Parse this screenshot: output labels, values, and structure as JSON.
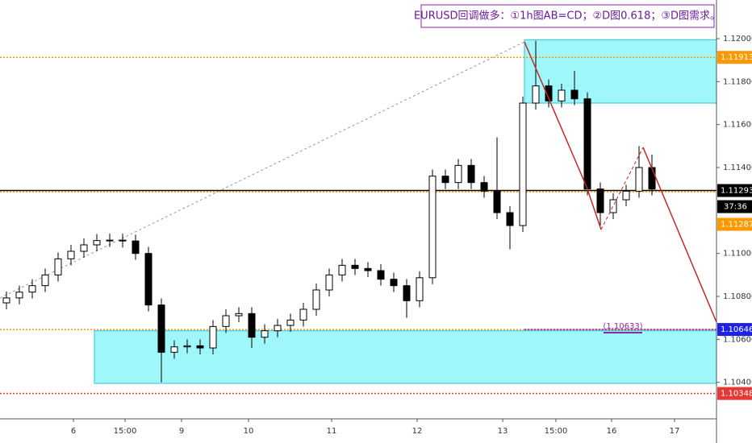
{
  "chart_data": {
    "type": "candlestick",
    "annotation": "EURUSD回调做多：①1h图AB=CD；②D图0.618；③D图需求。",
    "x": [
      8,
      24,
      40,
      56,
      72,
      88,
      104,
      120,
      136,
      152,
      168,
      184,
      200,
      216,
      232,
      248,
      264,
      280,
      296,
      312,
      328,
      344,
      360,
      376,
      392,
      408,
      424,
      440,
      456,
      472,
      488,
      504,
      520,
      536,
      552,
      568,
      584,
      600,
      616,
      632,
      648,
      664,
      680,
      696,
      712,
      728,
      744,
      760,
      776,
      792,
      808
    ],
    "open": [
      1.1077,
      1.10793,
      1.1082,
      1.1085,
      1.109,
      1.10975,
      1.1101,
      1.1104,
      1.1106,
      1.11062,
      1.11058,
      1.11,
      1.1076,
      1.1054,
      1.10565,
      1.1057,
      1.1056,
      1.1066,
      1.1071,
      1.1072,
      1.1061,
      1.1064,
      1.10665,
      1.1069,
      1.1074,
      1.1083,
      1.109,
      1.10945,
      1.1093,
      1.1092,
      1.1088,
      1.1085,
      1.1078,
      1.10887,
      1.1136,
      1.1133,
      1.1141,
      1.1133,
      1.1129,
      1.1119,
      1.1113,
      1.117,
      1.1178,
      1.1171,
      1.1176,
      1.1172,
      1.113,
      1.1119,
      1.1125,
      1.1129,
      1.114
    ],
    "high": [
      1.10823,
      1.1085,
      1.1088,
      1.1093,
      1.11005,
      1.1104,
      1.1107,
      1.1109,
      1.11092,
      1.11092,
      1.11088,
      1.1103,
      1.1079,
      1.10595,
      1.106,
      1.106,
      1.1069,
      1.1074,
      1.1075,
      1.1075,
      1.1067,
      1.10695,
      1.1072,
      1.1077,
      1.1086,
      1.1093,
      1.10975,
      1.10975,
      1.1096,
      1.1095,
      1.1091,
      1.1088,
      1.10917,
      1.1139,
      1.1139,
      1.1144,
      1.1144,
      1.1136,
      1.1154,
      1.1122,
      1.1173,
      1.1199,
      1.1181,
      1.1179,
      1.1185,
      1.1175,
      1.1133,
      1.1128,
      1.1132,
      1.115,
      1.1146
    ],
    "low": [
      1.1074,
      1.10763,
      1.1079,
      1.1082,
      1.1087,
      1.10945,
      1.1098,
      1.1101,
      1.1103,
      1.11028,
      1.1097,
      1.1073,
      1.104,
      1.1051,
      1.10535,
      1.1053,
      1.1053,
      1.1063,
      1.1068,
      1.1056,
      1.1058,
      1.1061,
      1.10635,
      1.1066,
      1.1071,
      1.108,
      1.1087,
      1.109,
      1.1089,
      1.1085,
      1.1082,
      1.107,
      1.1075,
      1.10857,
      1.113,
      1.113,
      1.113,
      1.1126,
      1.1116,
      1.1102,
      1.111,
      1.1167,
      1.1168,
      1.1168,
      1.1169,
      1.1127,
      1.1113,
      1.1116,
      1.1122,
      1.1126,
      1.1127
    ],
    "close": [
      1.10793,
      1.1082,
      1.1085,
      1.109,
      1.10975,
      1.1101,
      1.1104,
      1.1106,
      1.11062,
      1.11058,
      1.11,
      1.1076,
      1.1054,
      1.10565,
      1.1057,
      1.1056,
      1.1066,
      1.1071,
      1.1072,
      1.1061,
      1.1064,
      1.10665,
      1.1069,
      1.1074,
      1.1083,
      1.109,
      1.10945,
      1.1093,
      1.1092,
      1.1088,
      1.1085,
      1.1078,
      1.10887,
      1.1136,
      1.1133,
      1.1141,
      1.1133,
      1.1129,
      1.1119,
      1.1113,
      1.117,
      1.1178,
      1.1171,
      1.1176,
      1.1172,
      1.113,
      1.1119,
      1.1125,
      1.1129,
      1.114,
      1.113
    ],
    "up_color": "#ffffff",
    "down_color": "#000000",
    "xlim": [
      0,
      888
    ],
    "ylim": [
      1.1023,
      1.1218
    ],
    "xticks": [
      {
        "value": 91,
        "label": "6"
      },
      {
        "value": 155,
        "label": "15:00"
      },
      {
        "value": 225,
        "label": "9"
      },
      {
        "value": 308,
        "label": "10"
      },
      {
        "value": 411,
        "label": "11"
      },
      {
        "value": 517,
        "label": "12"
      },
      {
        "value": 623,
        "label": "13"
      },
      {
        "value": 689,
        "label": "15:00"
      },
      {
        "value": 758,
        "label": "16"
      },
      {
        "value": 836,
        "label": "17"
      }
    ],
    "yticks": [
      {
        "value": 1.12,
        "label": "1.12000"
      },
      {
        "value": 1.118,
        "label": "1.11800"
      },
      {
        "value": 1.116,
        "label": "1.11600"
      },
      {
        "value": 1.114,
        "label": "1.11400"
      },
      {
        "value": 1.11,
        "label": "1.11000"
      },
      {
        "value": 1.108,
        "label": "1.10800"
      },
      {
        "value": 1.106,
        "label": "1.10600"
      },
      {
        "value": 1.104,
        "label": "1.10400"
      }
    ],
    "levels": [
      {
        "value": 1.11913,
        "color": "#ff9800",
        "label_bg": "#ff9800"
      },
      {
        "value": 1.11293,
        "color": "#000000",
        "label_bg": "#000000"
      },
      {
        "value": 1.11287,
        "color": "#ff9800",
        "label_bg": "#ff9800"
      },
      {
        "value": 1.10646,
        "color": "#ff9800",
        "label_bg": "#1e22e6"
      },
      {
        "value": 1.10348,
        "color": "#e53935",
        "label_bg": "#e53935"
      }
    ],
    "timer": "37:36",
    "measure_label": "(1.10633)",
    "zones": [
      {
        "from_x": 650,
        "to_x": 888,
        "top": 1.11995,
        "bottom": 1.117
      },
      {
        "from_x": 117,
        "to_x": 888,
        "top": 1.1064,
        "bottom": 1.10395
      }
    ]
  }
}
